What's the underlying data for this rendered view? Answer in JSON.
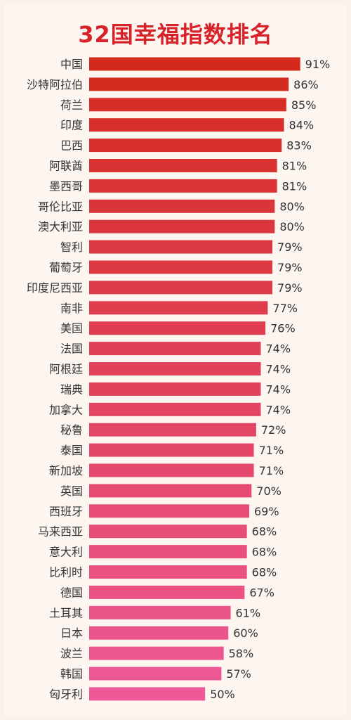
{
  "chart_data": {
    "type": "bar",
    "orientation": "horizontal",
    "title": "32国幸福指数排名",
    "categories": [
      "中国",
      "沙特阿拉伯",
      "荷兰",
      "印度",
      "巴西",
      "阿联酋",
      "墨西哥",
      "哥伦比亚",
      "澳大利亚",
      "智利",
      "葡萄牙",
      "印度尼西亚",
      "南非",
      "美国",
      "法国",
      "阿根廷",
      "瑞典",
      "加拿大",
      "秘鲁",
      "泰国",
      "新加坡",
      "英国",
      "西班牙",
      "马来西亚",
      "意大利",
      "比利时",
      "德国",
      "土耳其",
      "日本",
      "波兰",
      "韩国",
      "匈牙利"
    ],
    "values": [
      91,
      86,
      85,
      84,
      83,
      81,
      81,
      80,
      80,
      79,
      79,
      79,
      77,
      76,
      74,
      74,
      74,
      74,
      72,
      71,
      71,
      70,
      69,
      68,
      68,
      68,
      67,
      61,
      60,
      58,
      57,
      50
    ],
    "value_labels": [
      "91%",
      "86%",
      "85%",
      "84%",
      "83%",
      "81%",
      "81%",
      "80%",
      "80%",
      "79%",
      "79%",
      "79%",
      "77%",
      "76%",
      "74%",
      "74%",
      "74%",
      "74%",
      "72%",
      "71%",
      "71%",
      "70%",
      "69%",
      "68%",
      "68%",
      "68%",
      "67%",
      "61%",
      "60%",
      "58%",
      "57%",
      "50%"
    ],
    "unit": "%",
    "xlim": [
      0,
      100
    ],
    "grid": false,
    "colors": {
      "top": "#d42a1e",
      "bottom": "#ee5a98",
      "label": "#333333",
      "title": "#d8222a"
    }
  }
}
